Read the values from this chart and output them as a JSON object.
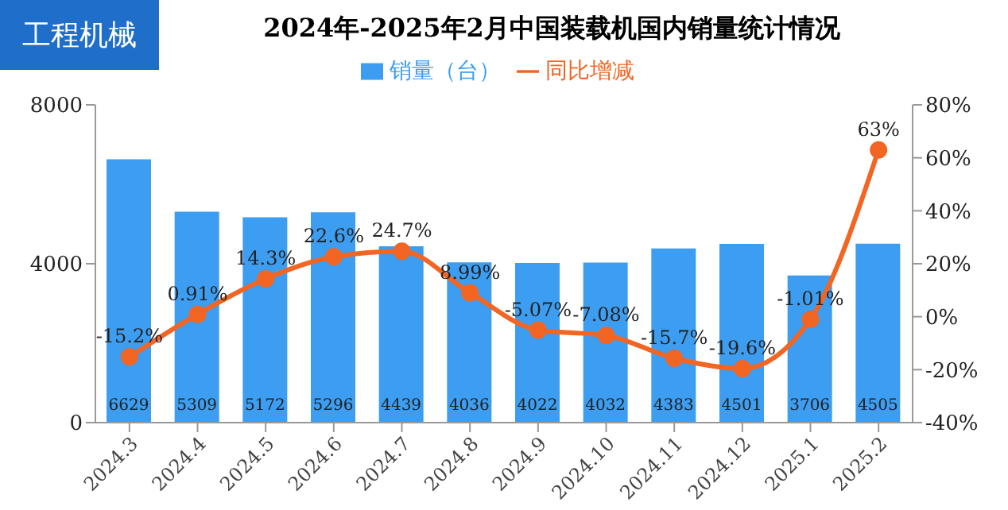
{
  "chart_data": {
    "type": "bar",
    "title": "2024年-2025年2月中国装载机国内销量统计情况",
    "annotations": [
      "工程机械"
    ],
    "categories": [
      "2024.3",
      "2024.4",
      "2024.5",
      "2024.6",
      "2024.7",
      "2024.8",
      "2024.9",
      "2024.10",
      "2024.11",
      "2024.12",
      "2025.1",
      "2025.2"
    ],
    "series": [
      {
        "name": "销量（台）",
        "color": "#3d9df0",
        "values": [
          6629,
          5309,
          5172,
          5296,
          4439,
          4036,
          4022,
          4032,
          4383,
          4501,
          3706,
          4505
        ],
        "value_labels": [
          "6629",
          "5309",
          "5172",
          "5296",
          "4439",
          "4036",
          "4022",
          "4032",
          "4383",
          "4501",
          "3706",
          "4505"
        ]
      },
      {
        "name": "同比增减",
        "type": "line",
        "axis": "y2",
        "color": "#f26522",
        "marker": "circle",
        "values": [
          -15.2,
          0.91,
          14.3,
          22.6,
          24.7,
          8.99,
          -5.07,
          -7.08,
          -15.7,
          -19.6,
          -1.01,
          63
        ],
        "value_labels": [
          "-15.2%",
          "0.91%",
          "14.3%",
          "22.6%",
          "24.7%",
          "8.99%",
          "-5.07%",
          "-7.08%",
          "-15.7%",
          "-19.6%",
          "-1.01%",
          "63%"
        ]
      }
    ],
    "ylim": [
      0,
      8000
    ],
    "yticks": [
      0,
      4000,
      8000
    ],
    "y2lim": [
      -40,
      80
    ],
    "y2ticks": [
      {
        "value": -40,
        "label": "-40%"
      },
      {
        "value": -20,
        "label": "-20%"
      },
      {
        "value": 0,
        "label": "0%"
      },
      {
        "value": 20,
        "label": "20%"
      },
      {
        "value": 40,
        "label": "40%"
      },
      {
        "value": 60,
        "label": "60%"
      },
      {
        "value": 80,
        "label": "80%"
      }
    ],
    "legend": "top",
    "grid": false
  }
}
